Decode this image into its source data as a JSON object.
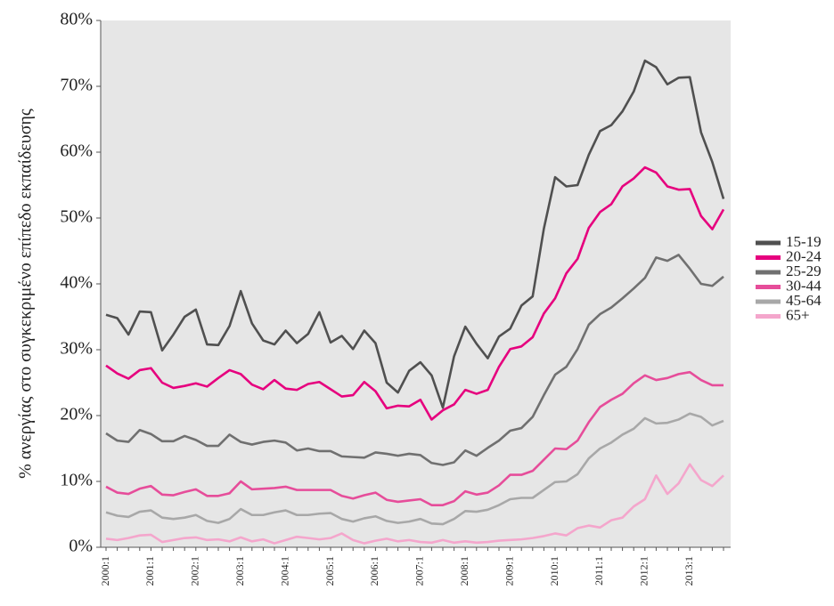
{
  "chart_data": {
    "type": "line",
    "y_label": "% ανεργίας στο συγκεκριμένο επίπεδο εκπαίδευσης",
    "categories": [
      "2000:1",
      null,
      null,
      null,
      "2001:1",
      null,
      null,
      null,
      "2002:1",
      null,
      null,
      null,
      "2003:1",
      null,
      null,
      null,
      "2004:1",
      null,
      null,
      null,
      "2005:1",
      null,
      null,
      null,
      "2006:1",
      null,
      null,
      null,
      "2007:1",
      null,
      null,
      null,
      "2008:1",
      null,
      null,
      null,
      "2009:1",
      null,
      null,
      null,
      "2010:1",
      null,
      null,
      null,
      "2011:1",
      null,
      null,
      null,
      "2012:1",
      null,
      null,
      null,
      "2013:1",
      null,
      null,
      null
    ],
    "ylim": [
      0,
      80
    ],
    "yticks": [
      {
        "value": 0,
        "label": "0%"
      },
      {
        "value": 10,
        "label": "10%"
      },
      {
        "value": 20,
        "label": "20%"
      },
      {
        "value": 30,
        "label": "30%"
      },
      {
        "value": 40,
        "label": "40%"
      },
      {
        "value": 50,
        "label": "50%"
      },
      {
        "value": 60,
        "label": "60%"
      },
      {
        "value": 70,
        "label": "70%"
      },
      {
        "value": 80,
        "label": "80%"
      }
    ],
    "legend": "right",
    "background": "#e6e6e6",
    "series": [
      {
        "name": "15-19",
        "color": "#505050",
        "values": [
          35.3,
          34.8,
          32.3,
          35.8,
          35.7,
          29.9,
          32.3,
          35.0,
          36.1,
          30.8,
          30.7,
          33.6,
          38.9,
          34.0,
          31.4,
          30.8,
          32.9,
          31.0,
          32.4,
          35.7,
          31.1,
          32.1,
          30.1,
          32.9,
          31.0,
          25.0,
          23.5,
          26.8,
          28.1,
          26.1,
          21.2,
          29.0,
          33.5,
          30.9,
          28.7,
          32.0,
          33.2,
          36.7,
          38.1,
          48.4,
          56.2,
          54.8,
          55.0,
          59.6,
          63.2,
          64.1,
          66.2,
          69.2,
          73.9,
          72.9,
          70.3,
          71.3,
          71.4,
          63.0,
          58.5,
          52.9
        ]
      },
      {
        "name": "20-24",
        "color": "#e6007e",
        "values": [
          27.6,
          26.4,
          25.6,
          26.9,
          27.2,
          25.0,
          24.2,
          24.5,
          24.9,
          24.4,
          25.7,
          26.9,
          26.3,
          24.7,
          24.0,
          25.4,
          24.1,
          23.9,
          24.8,
          25.1,
          24.0,
          22.9,
          23.1,
          25.1,
          23.7,
          21.1,
          21.5,
          21.4,
          22.4,
          19.4,
          20.8,
          21.7,
          23.9,
          23.3,
          23.9,
          27.4,
          30.1,
          30.5,
          31.9,
          35.5,
          37.8,
          41.6,
          43.8,
          48.5,
          50.9,
          52.1,
          54.8,
          56.0,
          57.7,
          56.9,
          54.8,
          54.3,
          54.4,
          50.3,
          48.3,
          51.3
        ]
      },
      {
        "name": "25-29",
        "color": "#707070",
        "values": [
          17.3,
          16.2,
          16.0,
          17.8,
          17.2,
          16.1,
          16.1,
          16.9,
          16.3,
          15.4,
          15.4,
          17.1,
          16.0,
          15.6,
          16.0,
          16.2,
          15.9,
          14.7,
          15.0,
          14.6,
          14.6,
          13.8,
          13.7,
          13.6,
          14.4,
          14.2,
          13.9,
          14.2,
          14.0,
          12.8,
          12.5,
          12.9,
          14.7,
          13.9,
          15.1,
          16.2,
          17.7,
          18.1,
          19.8,
          23.1,
          26.2,
          27.4,
          30.1,
          33.8,
          35.4,
          36.4,
          37.8,
          39.3,
          40.9,
          44.0,
          43.5,
          44.4,
          42.3,
          40.0,
          39.7,
          41.1
        ]
      },
      {
        "name": "30-44",
        "color": "#e64d9a",
        "values": [
          9.2,
          8.3,
          8.1,
          8.9,
          9.3,
          8.0,
          7.9,
          8.4,
          8.8,
          7.8,
          7.8,
          8.2,
          10.0,
          8.8,
          8.9,
          9.0,
          9.2,
          8.7,
          8.7,
          8.7,
          8.7,
          7.8,
          7.4,
          7.9,
          8.3,
          7.2,
          6.9,
          7.1,
          7.3,
          6.4,
          6.4,
          7.0,
          8.5,
          8.0,
          8.3,
          9.4,
          11.0,
          11.0,
          11.6,
          13.3,
          15.0,
          14.9,
          16.2,
          19.0,
          21.3,
          22.4,
          23.3,
          24.9,
          26.1,
          25.4,
          25.7,
          26.3,
          26.6,
          25.4,
          24.6,
          24.6
        ]
      },
      {
        "name": "45-64",
        "color": "#a8a8a8",
        "values": [
          5.3,
          4.8,
          4.6,
          5.4,
          5.6,
          4.5,
          4.3,
          4.5,
          4.9,
          4.0,
          3.7,
          4.3,
          5.8,
          4.9,
          4.9,
          5.3,
          5.6,
          4.9,
          4.9,
          5.1,
          5.2,
          4.3,
          3.9,
          4.4,
          4.7,
          4.0,
          3.7,
          3.9,
          4.3,
          3.6,
          3.5,
          4.3,
          5.5,
          5.4,
          5.7,
          6.4,
          7.3,
          7.5,
          7.5,
          8.7,
          9.9,
          10.0,
          11.1,
          13.5,
          15.0,
          15.9,
          17.1,
          18.0,
          19.6,
          18.8,
          18.9,
          19.4,
          20.3,
          19.8,
          18.5,
          19.2
        ]
      },
      {
        "name": "65+",
        "color": "#f4a6cc",
        "values": [
          1.3,
          1.1,
          1.4,
          1.8,
          1.9,
          0.8,
          1.1,
          1.4,
          1.5,
          1.1,
          1.2,
          0.9,
          1.5,
          0.9,
          1.2,
          0.6,
          1.1,
          1.6,
          1.4,
          1.2,
          1.4,
          2.1,
          1.1,
          0.6,
          1.0,
          1.3,
          0.9,
          1.1,
          0.8,
          0.7,
          1.1,
          0.7,
          0.9,
          0.7,
          0.8,
          1.0,
          1.1,
          1.2,
          1.4,
          1.7,
          2.1,
          1.8,
          2.9,
          3.3,
          3.0,
          4.1,
          4.5,
          6.2,
          7.3,
          10.9,
          8.1,
          9.7,
          12.6,
          10.2,
          9.3,
          10.9
        ]
      }
    ]
  }
}
